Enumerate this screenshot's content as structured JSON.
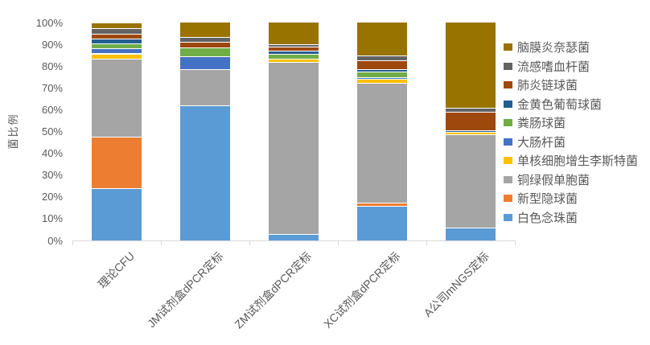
{
  "colors": {
    "background": "#FFFFFF",
    "axis_line": "#D9D9D9",
    "text": "#595959"
  },
  "chart_data": {
    "type": "bar",
    "subtype": "stacked-100-percent",
    "title": "",
    "xlabel": "",
    "ylabel": "菌比例",
    "ylim": [
      0,
      100
    ],
    "grid": false,
    "legend_position": "right",
    "y_tick_labels": [
      "0%",
      "10%",
      "20%",
      "30%",
      "40%",
      "50%",
      "60%",
      "70%",
      "80%",
      "90%",
      "100%"
    ],
    "categories": [
      "理论CFU",
      "JM试剂盒dPCR定标",
      "ZM试剂盒dPCR定标",
      "XC试剂盒dPCR定标",
      "A公司mNGS定标"
    ],
    "series": [
      {
        "name": "白色念珠菌",
        "color": "#5B9BD5",
        "values": [
          24,
          62,
          3,
          16,
          6
        ]
      },
      {
        "name": "新型隐球菌",
        "color": "#ED7D31",
        "values": [
          23.5,
          0,
          0,
          1.5,
          0
        ]
      },
      {
        "name": "铜绿假单胞菌",
        "color": "#A5A5A5",
        "values": [
          36,
          16.5,
          79,
          55,
          42.8
        ]
      },
      {
        "name": "单核细胞增生李斯特菌",
        "color": "#FFC000",
        "values": [
          2.3,
          0,
          1.5,
          1.5,
          1
        ]
      },
      {
        "name": "大肠杆菌",
        "color": "#4472C4",
        "values": [
          2.3,
          6,
          0,
          1,
          0
        ]
      },
      {
        "name": "粪肠球菌",
        "color": "#70AD47",
        "values": [
          2.3,
          4,
          2,
          2.5,
          0
        ]
      },
      {
        "name": "金黄色葡萄球菌",
        "color": "#255E91",
        "values": [
          2.3,
          0,
          1.5,
          1.2,
          0.7
        ]
      },
      {
        "name": "肺炎链球菌",
        "color": "#9E480E",
        "values": [
          2.3,
          2.5,
          2,
          4,
          8.5
        ]
      },
      {
        "name": "流感嗜血杆菌",
        "color": "#636363",
        "values": [
          2.3,
          2.5,
          1,
          2.3,
          2
        ]
      },
      {
        "name": "脑膜炎奈瑟菌",
        "color": "#997300",
        "values": [
          2.4,
          6.5,
          10,
          15,
          39
        ]
      }
    ],
    "legend_order_top_to_bottom": [
      "脑膜炎奈瑟菌",
      "流感嗜血杆菌",
      "肺炎链球菌",
      "金黄色葡萄球菌",
      "粪肠球菌",
      "大肠杆菌",
      "单核细胞增生李斯特菌",
      "铜绿假单胞菌",
      "新型隐球菌",
      "白色念珠菌"
    ]
  }
}
